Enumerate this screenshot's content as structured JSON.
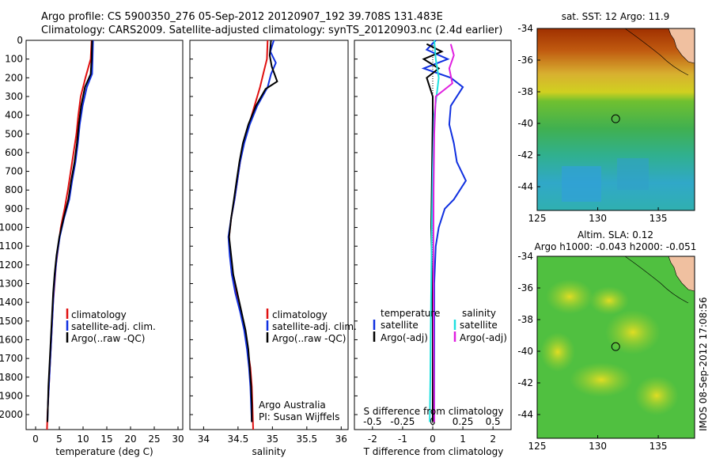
{
  "header": {
    "line1": "Argo profile: CS 5900350_276 05-Sep-2012 20120907_192 39.708S 131.483E",
    "line2": "Climatology: CARS2009. Satellite-adjusted climatology: synTS_20120903.nc (2.4d earlier)"
  },
  "sidebar_text": "IMOS 08-Sep-2012 17:08:56",
  "colors": {
    "red": "#e01010",
    "blue": "#1030e0",
    "black": "#000000",
    "cyan": "#20e0e0",
    "magenta": "#e020e0"
  },
  "chart_data": [
    {
      "type": "line",
      "panel": "temperature",
      "xlabel": "temperature (deg C)",
      "ylabel": "",
      "xlim": [
        -2,
        31
      ],
      "ylim": [
        2080,
        0
      ],
      "xticks": [
        "0",
        "5",
        "10",
        "15",
        "20",
        "25",
        "30"
      ],
      "yticks": [
        "0",
        "100",
        "200",
        "300",
        "400",
        "500",
        "600",
        "700",
        "800",
        "900",
        "1000",
        "1100",
        "1200",
        "1300",
        "1400",
        "1500",
        "1600",
        "1700",
        "1800",
        "1900",
        "2000"
      ],
      "legend": [
        "climatology",
        "satellite-adj. clim.",
        "Argo(..raw -QC)"
      ],
      "series": [
        {
          "name": "climatology",
          "color": "red",
          "points": [
            [
              11.8,
              0
            ],
            [
              11.6,
              100
            ],
            [
              10.5,
              200
            ],
            [
              9.5,
              300
            ],
            [
              9.0,
              400
            ],
            [
              8.6,
              500
            ],
            [
              8.0,
              600
            ],
            [
              7.4,
              700
            ],
            [
              6.8,
              800
            ],
            [
              6.1,
              900
            ],
            [
              5.3,
              1000
            ],
            [
              4.8,
              1100
            ],
            [
              4.3,
              1200
            ],
            [
              4.0,
              1300
            ],
            [
              3.7,
              1400
            ],
            [
              3.5,
              1500
            ],
            [
              3.3,
              1600
            ],
            [
              3.1,
              1700
            ],
            [
              2.9,
              1800
            ],
            [
              2.7,
              1900
            ],
            [
              2.5,
              2000
            ],
            [
              2.4,
              2080
            ]
          ]
        },
        {
          "name": "satellite-adj. clim.",
          "color": "blue",
          "points": [
            [
              12.1,
              0
            ],
            [
              12.0,
              100
            ],
            [
              11.9,
              180
            ],
            [
              10.8,
              250
            ],
            [
              9.9,
              350
            ],
            [
              9.3,
              450
            ],
            [
              8.9,
              550
            ],
            [
              8.4,
              650
            ],
            [
              7.7,
              750
            ],
            [
              7.1,
              850
            ],
            [
              6.0,
              950
            ],
            [
              5.1,
              1050
            ],
            [
              4.5,
              1150
            ],
            [
              4.1,
              1250
            ],
            [
              3.8,
              1350
            ],
            [
              3.6,
              1450
            ],
            [
              3.4,
              1550
            ],
            [
              3.2,
              1650
            ],
            [
              3.0,
              1750
            ],
            [
              2.8,
              1850
            ],
            [
              2.6,
              1950
            ],
            [
              2.5,
              2040
            ]
          ]
        },
        {
          "name": "Argo(..raw -QC)",
          "color": "black",
          "points": [
            [
              11.9,
              0
            ],
            [
              11.8,
              100
            ],
            [
              11.6,
              180
            ],
            [
              10.4,
              250
            ],
            [
              9.6,
              350
            ],
            [
              9.1,
              450
            ],
            [
              8.7,
              550
            ],
            [
              8.2,
              650
            ],
            [
              7.5,
              750
            ],
            [
              6.9,
              850
            ],
            [
              5.9,
              950
            ],
            [
              5.0,
              1050
            ],
            [
              4.4,
              1150
            ],
            [
              4.0,
              1250
            ],
            [
              3.7,
              1350
            ],
            [
              3.5,
              1450
            ],
            [
              3.3,
              1550
            ],
            [
              3.1,
              1650
            ],
            [
              2.9,
              1750
            ],
            [
              2.7,
              1850
            ],
            [
              2.6,
              1950
            ],
            [
              2.5,
              2040
            ]
          ]
        }
      ]
    },
    {
      "type": "line",
      "panel": "salinity",
      "xlabel": "salinity",
      "ylabel": "",
      "xlim": [
        33.8,
        36.1
      ],
      "ylim": [
        2080,
        0
      ],
      "xticks": [
        "34",
        "34.5",
        "35",
        "35.5",
        "36"
      ],
      "legend": [
        "climatology",
        "satellite-adj. clim.",
        "Argo(..raw -QC)"
      ],
      "annotations": [
        "Argo Australia",
        "PI: Susan Wijffels"
      ],
      "series": [
        {
          "name": "climatology",
          "color": "red",
          "points": [
            [
              34.93,
              0
            ],
            [
              34.92,
              100
            ],
            [
              34.88,
              160
            ],
            [
              34.82,
              250
            ],
            [
              34.74,
              350
            ],
            [
              34.66,
              450
            ],
            [
              34.58,
              550
            ],
            [
              34.53,
              650
            ],
            [
              34.49,
              750
            ],
            [
              34.45,
              850
            ],
            [
              34.4,
              950
            ],
            [
              34.37,
              1050
            ],
            [
              34.39,
              1150
            ],
            [
              34.41,
              1250
            ],
            [
              34.47,
              1350
            ],
            [
              34.54,
              1450
            ],
            [
              34.6,
              1550
            ],
            [
              34.64,
              1650
            ],
            [
              34.68,
              1750
            ],
            [
              34.7,
              1850
            ],
            [
              34.71,
              1950
            ],
            [
              34.72,
              2080
            ]
          ]
        },
        {
          "name": "satellite-adj. clim.",
          "color": "blue",
          "points": [
            [
              35.02,
              0
            ],
            [
              34.97,
              60
            ],
            [
              35.05,
              120
            ],
            [
              34.98,
              180
            ],
            [
              34.93,
              250
            ],
            [
              34.78,
              350
            ],
            [
              34.67,
              450
            ],
            [
              34.59,
              550
            ],
            [
              34.53,
              650
            ],
            [
              34.49,
              750
            ],
            [
              34.45,
              850
            ],
            [
              34.4,
              950
            ],
            [
              34.36,
              1050
            ],
            [
              34.38,
              1150
            ],
            [
              34.41,
              1250
            ],
            [
              34.46,
              1350
            ],
            [
              34.53,
              1450
            ],
            [
              34.59,
              1550
            ],
            [
              34.63,
              1650
            ],
            [
              34.66,
              1750
            ],
            [
              34.68,
              1850
            ],
            [
              34.69,
              1950
            ],
            [
              34.7,
              2040
            ]
          ]
        },
        {
          "name": "Argo(..raw -QC)",
          "color": "black",
          "points": [
            [
              34.98,
              0
            ],
            [
              34.96,
              80
            ],
            [
              34.99,
              140
            ],
            [
              35.07,
              220
            ],
            [
              34.9,
              260
            ],
            [
              34.76,
              350
            ],
            [
              34.65,
              450
            ],
            [
              34.57,
              550
            ],
            [
              34.52,
              650
            ],
            [
              34.48,
              750
            ],
            [
              34.44,
              850
            ],
            [
              34.4,
              950
            ],
            [
              34.37,
              1050
            ],
            [
              34.4,
              1150
            ],
            [
              34.43,
              1250
            ],
            [
              34.49,
              1350
            ],
            [
              34.55,
              1450
            ],
            [
              34.61,
              1550
            ],
            [
              34.65,
              1650
            ],
            [
              34.67,
              1750
            ],
            [
              34.69,
              1850
            ],
            [
              34.7,
              1950
            ],
            [
              34.7,
              2040
            ]
          ]
        }
      ]
    },
    {
      "type": "line",
      "panel": "differences",
      "xlabel": "T difference from climatology",
      "top_label": "S difference from climatology",
      "xlim": [
        -2.6,
        2.6
      ],
      "ylim": [
        2080,
        0
      ],
      "xticks": [
        "-2",
        "-1",
        "0",
        "1",
        "2"
      ],
      "sticks": [
        "-0.5",
        "-0.25",
        "0",
        "0.25",
        "0.5"
      ],
      "legend_headers": [
        "temperature",
        "salinity"
      ],
      "legend": [
        "satellite",
        "Argo(-adj)",
        "satellite",
        "Argo(-adj)"
      ],
      "series": [
        {
          "name": "satellite",
          "group": "temperature",
          "color": "blue",
          "points": [
            [
              0.1,
              0
            ],
            [
              -0.2,
              50
            ],
            [
              0.5,
              100
            ],
            [
              -0.3,
              150
            ],
            [
              0.6,
              200
            ],
            [
              1.0,
              250
            ],
            [
              0.6,
              350
            ],
            [
              0.55,
              450
            ],
            [
              0.7,
              550
            ],
            [
              0.8,
              650
            ],
            [
              1.1,
              750
            ],
            [
              0.7,
              850
            ],
            [
              0.4,
              900
            ],
            [
              0.2,
              1000
            ],
            [
              0.1,
              1100
            ],
            [
              0.05,
              1300
            ],
            [
              0.05,
              1600
            ],
            [
              0.05,
              2040
            ]
          ]
        },
        {
          "name": "Argo(-adj)",
          "group": "temperature",
          "color": "black",
          "points": [
            [
              -0.2,
              20
            ],
            [
              0.3,
              60
            ],
            [
              -0.3,
              100
            ],
            [
              0.2,
              150
            ],
            [
              -0.2,
              200
            ],
            [
              0.0,
              300
            ],
            [
              0.0,
              400
            ],
            [
              -0.05,
              1000
            ],
            [
              0.0,
              1500
            ],
            [
              0.0,
              2040
            ]
          ]
        },
        {
          "name": "satellite",
          "group": "salinity",
          "color": "cyan",
          "points": [
            [
              0.05,
              0
            ],
            [
              0.1,
              100
            ],
            [
              0.2,
              200
            ],
            [
              0.05,
              400
            ],
            [
              0.0,
              700
            ],
            [
              -0.03,
              1000
            ],
            [
              -0.05,
              1300
            ],
            [
              -0.07,
              1600
            ],
            [
              -0.08,
              1800
            ],
            [
              -0.1,
              2040
            ]
          ]
        },
        {
          "name": "Argo(-adj)",
          "group": "salinity",
          "color": "magenta",
          "points": [
            [
              0.6,
              20
            ],
            [
              0.7,
              80
            ],
            [
              0.55,
              150
            ],
            [
              0.65,
              230
            ],
            [
              0.1,
              300
            ],
            [
              0.05,
              500
            ],
            [
              0.03,
              800
            ],
            [
              0.02,
              1200
            ],
            [
              0.03,
              1600
            ],
            [
              0.05,
              2040
            ]
          ]
        }
      ]
    },
    {
      "type": "heatmap",
      "panel": "sst-map",
      "title": "sat. SST: 12 Argo: 11.9",
      "xlim": [
        125,
        138
      ],
      "ylim": [
        -45.5,
        -34
      ],
      "xticks": [
        "125",
        "130",
        "135"
      ],
      "yticks": [
        "-34",
        "-36",
        "-38",
        "-40",
        "-42",
        "-44"
      ],
      "argo_position": {
        "lon": 131.483,
        "lat": -39.708
      }
    },
    {
      "type": "heatmap",
      "panel": "sla-map",
      "title": "Altim. SLA: 0.12",
      "subtitle": "Argo h1000: -0.043 h2000: -0.051",
      "xlim": [
        125,
        138
      ],
      "ylim": [
        -45.5,
        -34
      ],
      "xticks": [
        "125",
        "130",
        "135"
      ],
      "yticks": [
        "-34",
        "-36",
        "-38",
        "-40",
        "-42",
        "-44"
      ],
      "argo_position": {
        "lon": 131.483,
        "lat": -39.708
      }
    }
  ]
}
